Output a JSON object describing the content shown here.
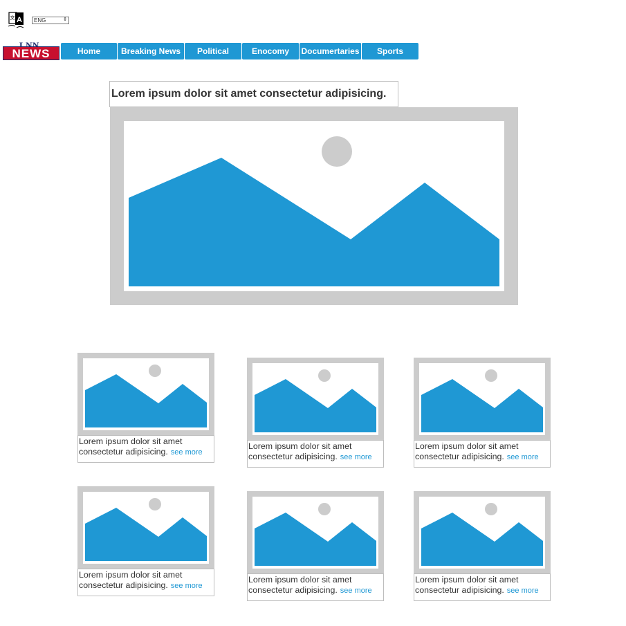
{
  "language_selector": {
    "selected": "ENG"
  },
  "logo": {
    "top_text": "LNN",
    "main_text": "NEWS"
  },
  "nav": {
    "items": [
      {
        "label": "Home"
      },
      {
        "label": "Breaking News"
      },
      {
        "label": "Political"
      },
      {
        "label": "Enocomy"
      },
      {
        "label": "Documertaries"
      },
      {
        "label": "Sports"
      }
    ]
  },
  "featured": {
    "headline": "Lorem ipsum dolor sit amet consectetur adipisicing."
  },
  "cards": [
    {
      "text": "Lorem ipsum dolor sit amet consectetur adipisicing.",
      "link": "see more"
    },
    {
      "text": "Lorem ipsum dolor sit amet consectetur adipisicing.",
      "link": "see more"
    },
    {
      "text": "Lorem ipsum dolor sit amet consectetur adipisicing.",
      "link": "see more"
    },
    {
      "text": "Lorem ipsum dolor sit amet consectetur adipisicing.",
      "link": "see more"
    },
    {
      "text": "Lorem ipsum dolor sit amet consectetur adipisicing.",
      "link": "see more"
    },
    {
      "text": "Lorem ipsum dolor sit amet consectetur adipisicing.",
      "link": "see more"
    }
  ],
  "colors": {
    "accent": "#1f98d4",
    "placeholder_frame": "#cccccc",
    "logo_red": "#c8102e",
    "logo_navy": "#1d2a6b"
  },
  "icons": {
    "translate": "translate-icon",
    "select_arrow": "updown-arrow-icon"
  }
}
